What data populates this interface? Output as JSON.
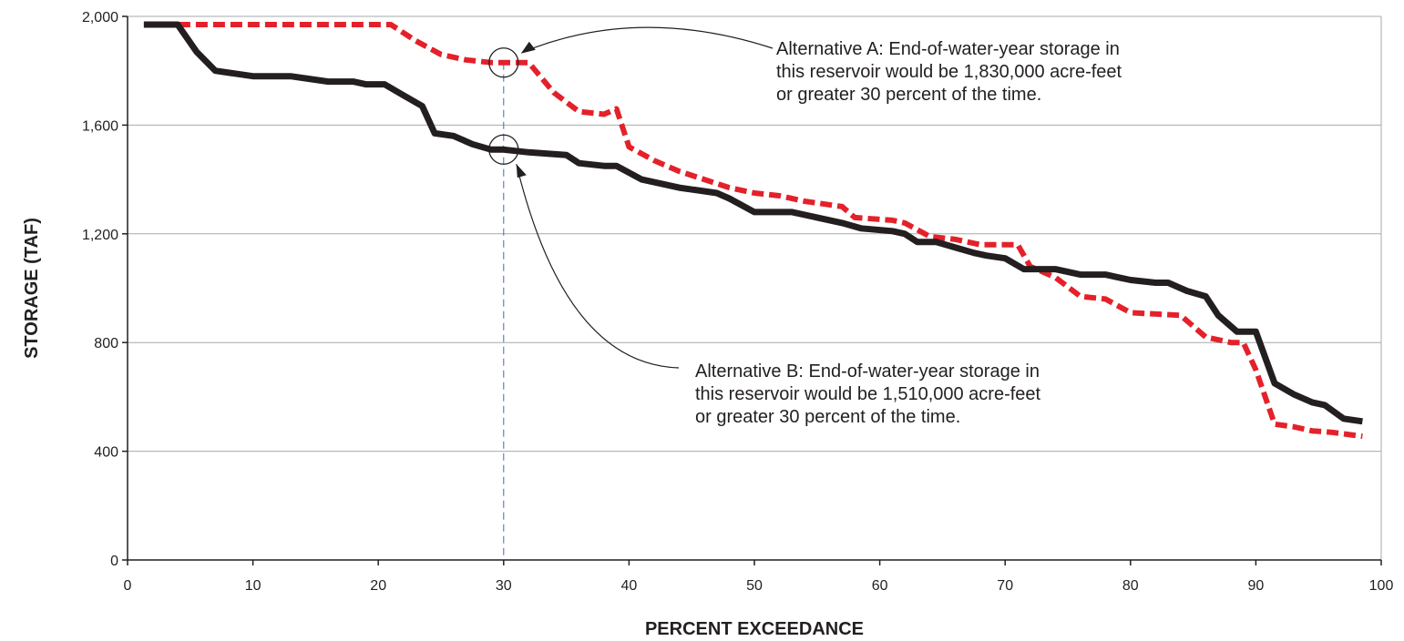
{
  "chart_data": {
    "type": "line",
    "title": "",
    "xlabel": "PERCENT EXCEEDANCE",
    "ylabel": "STORAGE (TAF)",
    "xlim": [
      0,
      100
    ],
    "ylim": [
      0,
      2000
    ],
    "x_ticks": [
      0,
      10,
      20,
      30,
      40,
      50,
      60,
      70,
      80,
      90,
      100
    ],
    "x_tick_labels": [
      "0",
      "10",
      "20",
      "30",
      "40",
      "50",
      "60",
      "70",
      "80",
      "90",
      "100"
    ],
    "y_ticks": [
      0,
      400,
      800,
      1200,
      1600,
      2000
    ],
    "y_tick_labels": [
      "0",
      "400",
      "800",
      "1,200",
      "1,600",
      "2,000"
    ],
    "grid": "horizontal",
    "legend": "none",
    "series": [
      {
        "style": "dashed",
        "color": "#e4212a",
        "points": [
          [
            1.3,
            1970
          ],
          [
            21,
            1970
          ],
          [
            23,
            1910
          ],
          [
            25,
            1860
          ],
          [
            27,
            1840
          ],
          [
            29,
            1830
          ],
          [
            32,
            1830
          ],
          [
            34,
            1720
          ],
          [
            36,
            1650
          ],
          [
            38,
            1640
          ],
          [
            39,
            1660
          ],
          [
            40,
            1520
          ],
          [
            42,
            1470
          ],
          [
            44,
            1430
          ],
          [
            46,
            1400
          ],
          [
            48,
            1370
          ],
          [
            50,
            1350
          ],
          [
            52,
            1340
          ],
          [
            54,
            1320
          ],
          [
            57,
            1300
          ],
          [
            58,
            1260
          ],
          [
            61,
            1250
          ],
          [
            62,
            1240
          ],
          [
            64,
            1190
          ],
          [
            66,
            1180
          ],
          [
            68,
            1160
          ],
          [
            71,
            1160
          ],
          [
            72,
            1080
          ],
          [
            74,
            1040
          ],
          [
            76,
            970
          ],
          [
            78,
            960
          ],
          [
            80,
            910
          ],
          [
            84,
            900
          ],
          [
            86,
            820
          ],
          [
            88,
            800
          ],
          [
            89,
            800
          ],
          [
            90,
            700
          ],
          [
            91.5,
            500
          ],
          [
            93,
            490
          ],
          [
            94.5,
            475
          ],
          [
            96,
            470
          ],
          [
            98.5,
            455
          ]
        ]
      },
      {
        "style": "solid",
        "color": "#231f20",
        "points": [
          [
            1.3,
            1970
          ],
          [
            4,
            1970
          ],
          [
            5.5,
            1870
          ],
          [
            7,
            1800
          ],
          [
            10,
            1780
          ],
          [
            13,
            1780
          ],
          [
            16,
            1760
          ],
          [
            18,
            1760
          ],
          [
            19,
            1750
          ],
          [
            20.5,
            1750
          ],
          [
            22,
            1710
          ],
          [
            23.5,
            1670
          ],
          [
            24.5,
            1570
          ],
          [
            26,
            1560
          ],
          [
            27.5,
            1530
          ],
          [
            29,
            1510
          ],
          [
            30,
            1510
          ],
          [
            32,
            1500
          ],
          [
            35,
            1490
          ],
          [
            36,
            1460
          ],
          [
            38,
            1450
          ],
          [
            39,
            1450
          ],
          [
            41,
            1400
          ],
          [
            43,
            1380
          ],
          [
            44,
            1370
          ],
          [
            47,
            1350
          ],
          [
            48,
            1330
          ],
          [
            50,
            1280
          ],
          [
            53,
            1280
          ],
          [
            55,
            1260
          ],
          [
            57,
            1240
          ],
          [
            58.5,
            1220
          ],
          [
            61,
            1210
          ],
          [
            62,
            1200
          ],
          [
            63,
            1170
          ],
          [
            64.5,
            1170
          ],
          [
            66,
            1150
          ],
          [
            67.5,
            1130
          ],
          [
            68.5,
            1120
          ],
          [
            70,
            1110
          ],
          [
            71.5,
            1070
          ],
          [
            74,
            1070
          ],
          [
            76,
            1050
          ],
          [
            78,
            1050
          ],
          [
            79,
            1040
          ],
          [
            80,
            1030
          ],
          [
            82,
            1020
          ],
          [
            83,
            1020
          ],
          [
            84.5,
            990
          ],
          [
            86,
            970
          ],
          [
            87,
            900
          ],
          [
            88.5,
            840
          ],
          [
            90,
            840
          ],
          [
            91.5,
            650
          ],
          [
            93,
            610
          ],
          [
            94.5,
            580
          ],
          [
            95.5,
            570
          ],
          [
            97,
            520
          ],
          [
            98.5,
            510
          ]
        ]
      }
    ],
    "reference_line": {
      "x": 30,
      "style": "dashed",
      "color": "#3e6aab"
    },
    "annotations": [
      {
        "name": "alternative-a",
        "x": 30,
        "y": 1830,
        "text": [
          "Alternative A: End-of-water-year storage in",
          "this reservoir would be 1,830,000 acre-feet",
          "or greater 30 percent of the time."
        ]
      },
      {
        "name": "alternative-b",
        "x": 30,
        "y": 1510,
        "text": [
          "Alternative B: End-of-water-year storage in",
          "this reservoir would be 1,510,000 acre-feet",
          "or greater 30 percent of the time."
        ]
      }
    ]
  }
}
